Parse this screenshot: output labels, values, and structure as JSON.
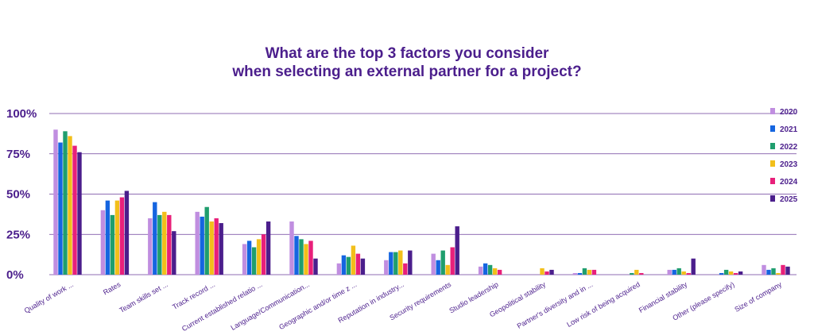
{
  "chart_data": {
    "type": "bar",
    "title": [
      "What are the top 3 factors you consider",
      "when selecting an external partner for a project?"
    ],
    "ylim": [
      0,
      100
    ],
    "yticks": [
      0,
      25,
      50,
      75,
      100
    ],
    "ytick_labels": [
      "0%",
      "25%",
      "50%",
      "75%",
      "100%"
    ],
    "grid": true,
    "legend_position": "right",
    "categories": [
      "Quality of work ...",
      "Rates",
      "Team skills set ...",
      "Track record ...",
      "Current established relatio ...",
      "Language/Communication...",
      "Geographic and/or time z ...",
      "Reputation in industry...",
      "Security requirements",
      "Studio leadership",
      "Geopolitical stability",
      "Partner's diversity and in ...",
      "Low risk of being acquired",
      "Financial stability",
      "Other (please specify)",
      "Size of company"
    ],
    "series": [
      {
        "name": "2020",
        "color": "#c08ee0",
        "values": [
          90,
          40,
          35,
          39,
          19,
          33,
          7,
          9,
          13,
          5,
          0,
          1,
          0,
          3,
          0,
          6
        ]
      },
      {
        "name": "2021",
        "color": "#1565e0",
        "values": [
          82,
          46,
          45,
          36,
          21,
          24,
          12,
          14,
          9,
          7,
          0,
          1,
          0,
          3,
          1,
          3
        ]
      },
      {
        "name": "2022",
        "color": "#1f9e6e",
        "values": [
          89,
          37,
          37,
          42,
          17,
          22,
          11,
          14,
          15,
          6,
          0,
          4,
          1,
          4,
          3,
          4
        ]
      },
      {
        "name": "2023",
        "color": "#f2bf1a",
        "values": [
          86,
          46,
          39,
          33,
          22,
          19,
          18,
          15,
          6,
          4,
          4,
          3,
          3,
          2,
          2,
          1
        ]
      },
      {
        "name": "2024",
        "color": "#e8207a",
        "values": [
          80,
          48,
          37,
          35,
          25,
          21,
          13,
          7,
          17,
          3,
          2,
          3,
          1,
          1,
          1,
          6
        ]
      },
      {
        "name": "2025",
        "color": "#4b1e8c",
        "values": [
          76,
          52,
          27,
          32,
          33,
          10,
          10,
          15,
          30,
          0,
          3,
          0,
          0,
          10,
          2,
          5
        ]
      }
    ]
  }
}
